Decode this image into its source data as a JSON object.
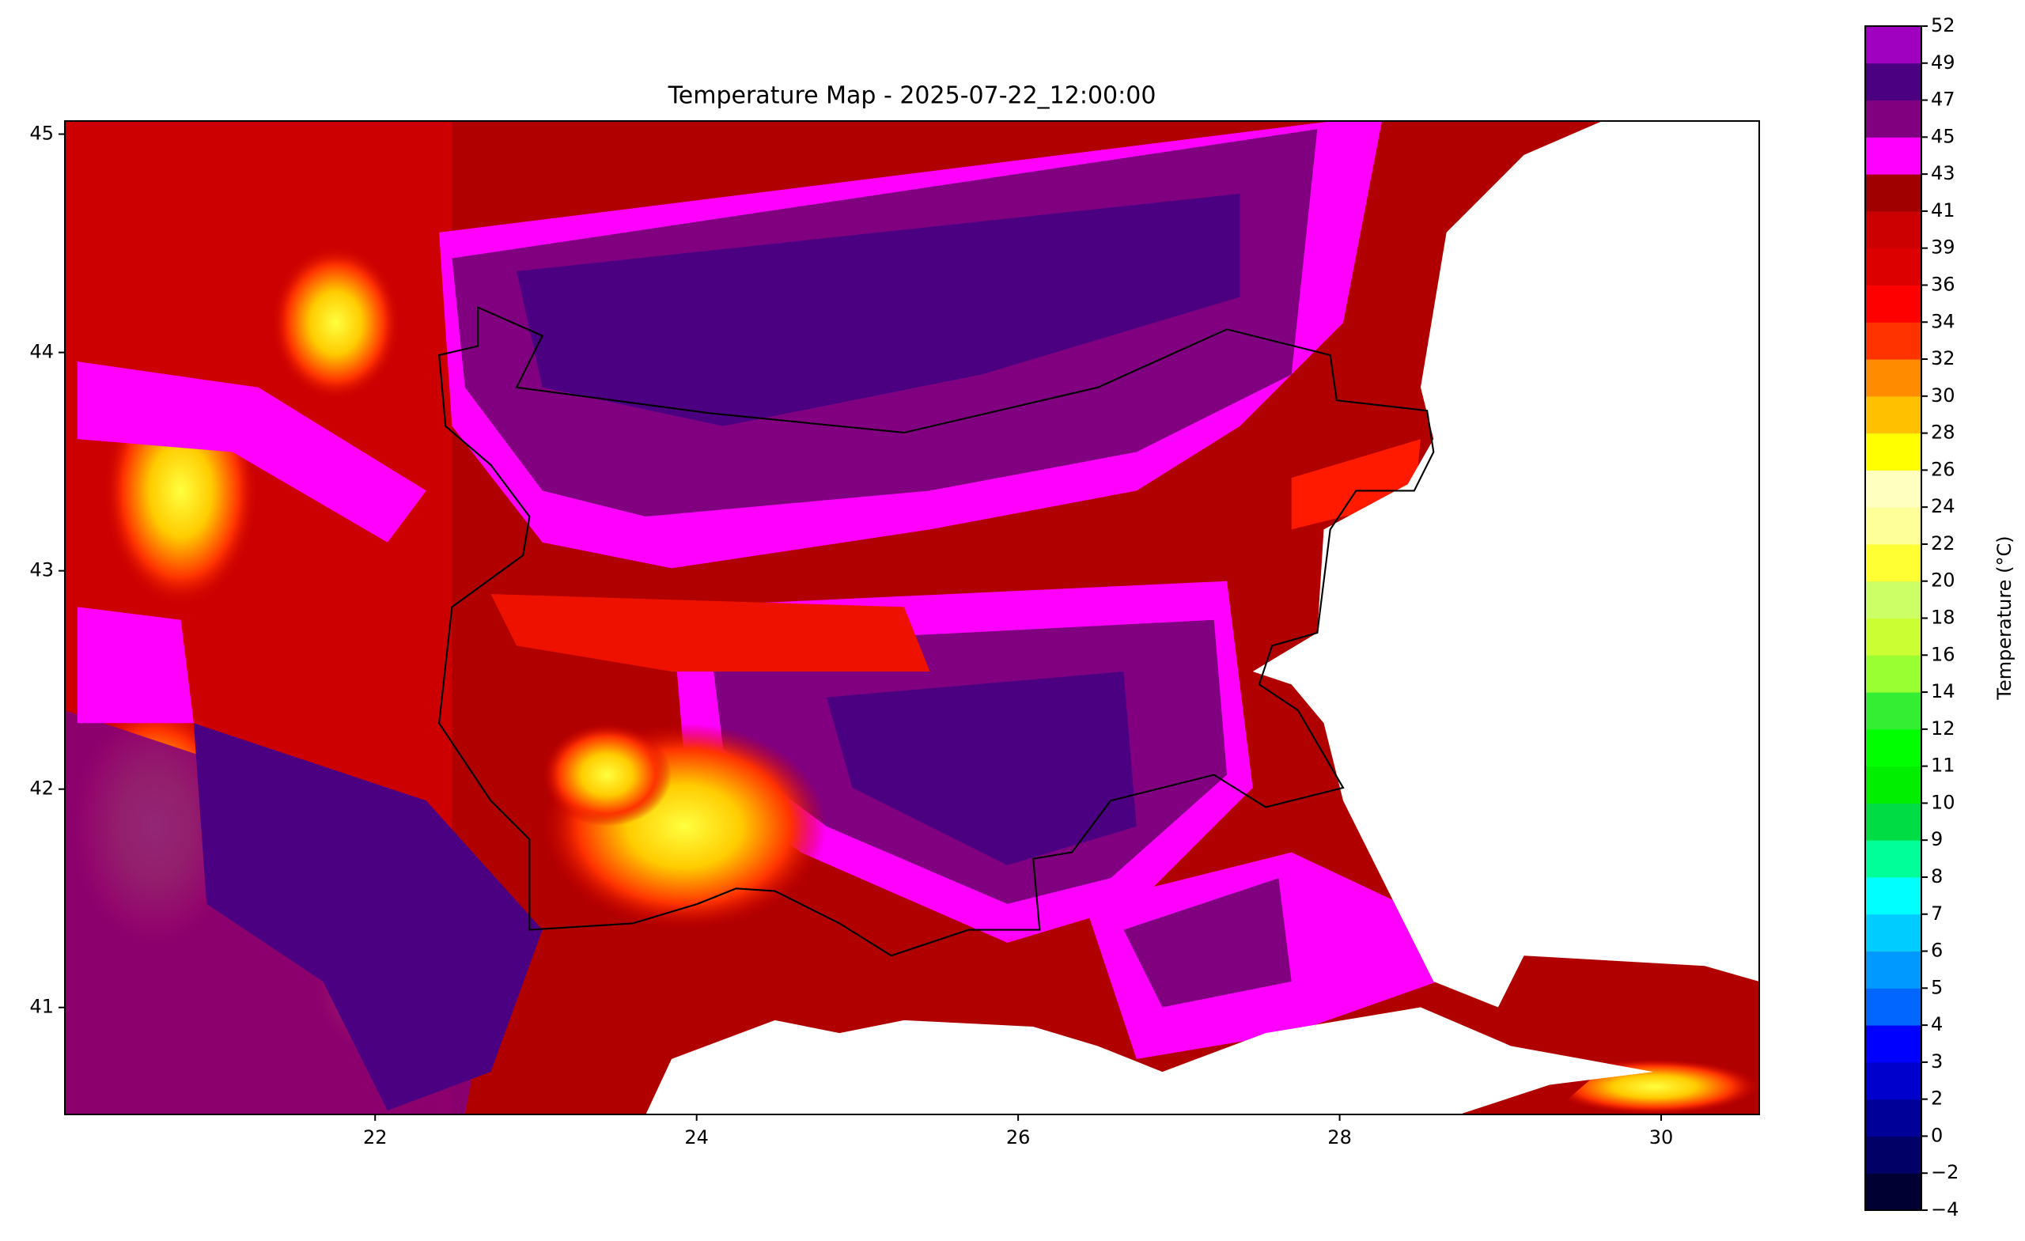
{
  "chart_data": {
    "type": "map",
    "title": "Temperature Map - 2025-07-22_12:00:00",
    "xlim": [
      20.07,
      30.61
    ],
    "ylim": [
      40.51,
      45.06
    ],
    "xticks": [
      22,
      24,
      26,
      28,
      30
    ],
    "yticks": [
      41,
      42,
      43,
      44,
      45
    ],
    "colorbar": {
      "label": "Temperature (°C)",
      "levels": [
        {
          "value": -4,
          "label": "−4"
        },
        {
          "value": -2,
          "label": "−2"
        },
        0,
        2,
        3,
        4,
        5,
        6,
        7,
        8,
        9,
        10,
        11,
        12,
        14,
        16,
        18,
        20,
        22,
        24,
        26,
        28,
        30,
        32,
        34,
        36,
        39,
        41,
        43,
        45,
        47,
        49,
        52
      ],
      "colors": [
        "#000033",
        "#000066",
        "#000099",
        "#0000cc",
        "#0000ff",
        "#0066ff",
        "#0099ff",
        "#00ccff",
        "#00ffff",
        "#00ff99",
        "#00dd44",
        "#00ee00",
        "#00ff00",
        "#33ee33",
        "#99ff33",
        "#ccff33",
        "#ccff66",
        "#ffff33",
        "#ffff99",
        "#ffffc0",
        "#ffff00",
        "#ffc000",
        "#ff8c00",
        "#ff3300",
        "#ff0000",
        "#dd0000",
        "#cc0000",
        "#a00000",
        "#ff00ff",
        "#800080",
        "#4b0082",
        "#a000c0"
      ]
    }
  }
}
